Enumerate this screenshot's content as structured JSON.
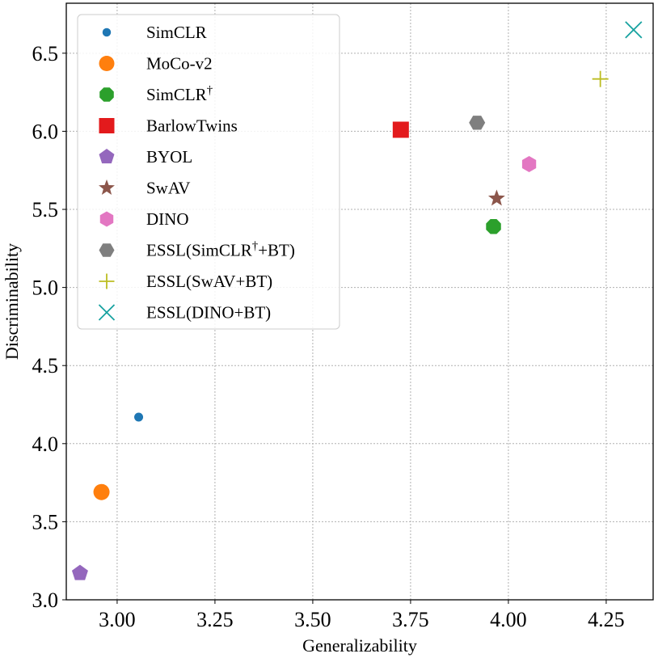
{
  "chart_data": {
    "type": "scatter",
    "xlabel": "Generalizability",
    "ylabel": "Discriminability",
    "xlim": [
      2.87,
      4.37
    ],
    "ylim": [
      3.0,
      6.82
    ],
    "xticks": [
      3.0,
      3.25,
      3.5,
      3.75,
      4.0,
      4.25
    ],
    "xtick_labels": [
      "3.00",
      "3.25",
      "3.50",
      "3.75",
      "4.00",
      "4.25"
    ],
    "yticks": [
      3.0,
      3.5,
      4.0,
      4.5,
      5.0,
      5.5,
      6.0,
      6.5
    ],
    "ytick_labels": [
      "3.0",
      "3.5",
      "4.0",
      "4.5",
      "5.0",
      "5.5",
      "6.0",
      "6.5"
    ],
    "grid": true,
    "legend_position": "top-left",
    "series": [
      {
        "name": "SimCLR",
        "name_main": "SimCLR",
        "name_sup": "",
        "name_tail": "",
        "marker": "small-circle",
        "color": "#1f77b4",
        "x": 3.055,
        "y": 4.17
      },
      {
        "name": "MoCo-v2",
        "name_main": "MoCo-v2",
        "name_sup": "",
        "name_tail": "",
        "marker": "circle",
        "color": "#ff7f0e",
        "x": 2.96,
        "y": 3.69
      },
      {
        "name": "SimCLR†",
        "name_main": "SimCLR",
        "name_sup": "†",
        "name_tail": "",
        "marker": "octagon",
        "color": "#2ca02c",
        "x": 3.962,
        "y": 5.39
      },
      {
        "name": "BarlowTwins",
        "name_main": "BarlowTwins",
        "name_sup": "",
        "name_tail": "",
        "marker": "square",
        "color": "#e31a1c",
        "x": 3.725,
        "y": 6.01
      },
      {
        "name": "BYOL",
        "name_main": "BYOL",
        "name_sup": "",
        "name_tail": "",
        "marker": "pentagon",
        "color": "#9467bd",
        "x": 2.905,
        "y": 3.17
      },
      {
        "name": "SwAV",
        "name_main": "SwAV",
        "name_sup": "",
        "name_tail": "",
        "marker": "star",
        "color": "#8c564b",
        "x": 3.97,
        "y": 5.57
      },
      {
        "name": "DINO",
        "name_main": "DINO",
        "name_sup": "",
        "name_tail": "",
        "marker": "hexagon",
        "color": "#e377c2",
        "x": 4.053,
        "y": 5.79
      },
      {
        "name": "ESSL(SimCLR†+BT)",
        "name_main": "ESSL(SimCLR",
        "name_sup": "†",
        "name_tail": "+BT)",
        "marker": "hexagon-flat",
        "color": "#7f7f7f",
        "x": 3.92,
        "y": 6.055
      },
      {
        "name": "ESSL(SwAV+BT)",
        "name_main": "ESSL(SwAV+BT)",
        "name_sup": "",
        "name_tail": "",
        "marker": "plus",
        "color": "#bcbd22",
        "x": 4.235,
        "y": 6.335
      },
      {
        "name": "ESSL(DINO+BT)",
        "name_main": "ESSL(DINO+BT)",
        "name_sup": "",
        "name_tail": "",
        "marker": "x",
        "color": "#17a2a0",
        "x": 4.32,
        "y": 6.65
      }
    ]
  }
}
